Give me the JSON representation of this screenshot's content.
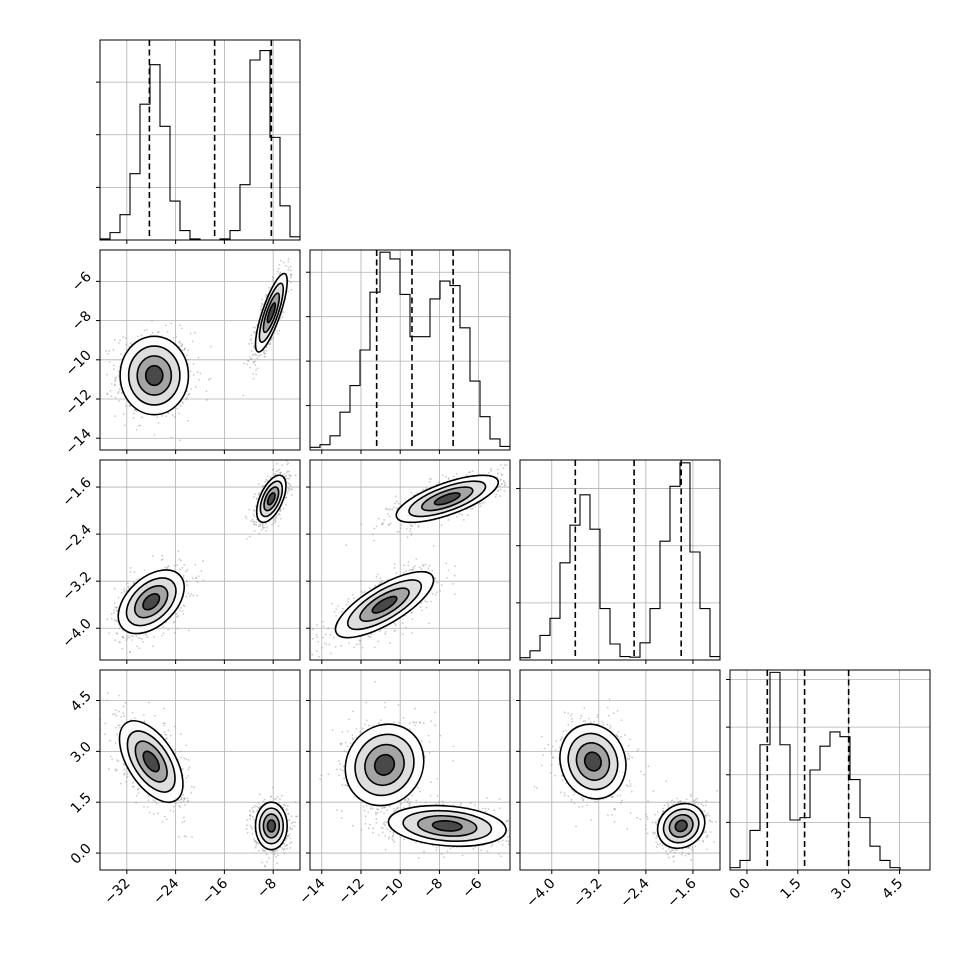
{
  "chart_data": {
    "type": "corner",
    "parameters": [
      {
        "ticks": [
          "−32",
          "−24",
          "−16",
          "−8"
        ],
        "tick_values": [
          -32,
          -24,
          -16,
          -8
        ],
        "range": [
          -36.4,
          -3.6
        ],
        "quantiles": [
          -28.3,
          -17.6,
          -8.3
        ],
        "hist_edges": [
          -36.4,
          -34.76,
          -33.12,
          -31.48,
          -29.84,
          -28.2,
          -26.56,
          -24.92,
          -23.28,
          -21.64,
          -20.0,
          -18.36,
          -16.72,
          -15.08,
          -13.44,
          -11.8,
          -10.16,
          -8.52,
          -6.88,
          -5.24,
          -3.6
        ],
        "hist_counts": [
          0.2,
          1.4,
          4.8,
          12.6,
          25.8,
          33.3,
          21.6,
          7.4,
          1.8,
          0.2,
          0.0,
          0.0,
          0.2,
          1.8,
          10.5,
          34.2,
          36.0,
          19.5,
          6.5,
          0.6
        ]
      },
      {
        "ticks": [
          "−14",
          "−12",
          "−10",
          "−8",
          "−6"
        ],
        "tick_values": [
          -14,
          -12,
          -10,
          -8,
          -6
        ],
        "range": [
          -14.6,
          -4.4
        ],
        "quantiles": [
          -11.2,
          -9.4,
          -7.3
        ],
        "hist_edges": [
          -14.6,
          -14.09,
          -13.58,
          -13.07,
          -12.56,
          -12.05,
          -11.54,
          -11.03,
          -10.52,
          -10.01,
          -9.5,
          -8.99,
          -8.48,
          -7.97,
          -7.46,
          -6.95,
          -6.44,
          -5.93,
          -5.42,
          -4.91,
          -4.4
        ],
        "hist_counts": [
          0.6,
          1.2,
          3.2,
          8.5,
          14.5,
          22.5,
          35.5,
          44.5,
          43.0,
          35.0,
          25.5,
          25.5,
          34.0,
          38.0,
          37.0,
          27.5,
          15.5,
          7.5,
          2.5,
          0.8
        ]
      },
      {
        "ticks": [
          "−4.0",
          "−3.2",
          "−2.4",
          "−1.6"
        ],
        "tick_values": [
          -4.0,
          -3.2,
          -2.4,
          -1.6
        ],
        "range": [
          -4.54,
          -1.14
        ],
        "quantiles": [
          -3.6,
          -2.6,
          -1.8
        ],
        "hist_edges": [
          -4.54,
          -4.37,
          -4.2,
          -4.03,
          -3.86,
          -3.69,
          -3.52,
          -3.35,
          -3.18,
          -3.01,
          -2.84,
          -2.67,
          -2.5,
          -2.33,
          -2.16,
          -1.99,
          -1.82,
          -1.65,
          -1.48,
          -1.31,
          -1.14
        ],
        "hist_counts": [
          0.4,
          1.6,
          4.3,
          7.3,
          17.0,
          23.6,
          28.9,
          22.9,
          9.0,
          2.8,
          0.6,
          0.5,
          3.0,
          9.0,
          20.8,
          30.4,
          34.5,
          18.9,
          9.0,
          0.6
        ]
      },
      {
        "ticks": [
          "0.0",
          "1.5",
          "3.0",
          "4.5"
        ],
        "tick_values": [
          0.0,
          1.5,
          3.0,
          4.5
        ],
        "range": [
          -0.5,
          5.4
        ],
        "quantiles": [
          0.6,
          1.7,
          3.0
        ],
        "hist_edges": [
          -0.5,
          -0.205,
          0.09,
          0.385,
          0.68,
          0.975,
          1.27,
          1.565,
          1.86,
          2.155,
          2.45,
          2.745,
          3.04,
          3.335,
          3.63,
          3.925,
          4.22,
          4.515,
          4.81,
          5.105,
          5.4
        ],
        "hist_counts": [
          0.5,
          2.0,
          8.3,
          26.3,
          41.5,
          26.3,
          10.5,
          11.0,
          21.0,
          26.0,
          29.0,
          28.0,
          19.0,
          11.0,
          5.0,
          2.0,
          0.5,
          0.0,
          0.0,
          0.0
        ]
      }
    ],
    "histogram_ylims": [
      [
        0,
        38
      ],
      [
        0,
        45
      ],
      [
        0,
        35
      ],
      [
        0,
        42
      ]
    ],
    "histogram_tick_counts": [
      [
        10,
        20,
        30
      ],
      [
        10,
        20,
        30,
        40
      ],
      [
        10,
        20,
        30
      ],
      [
        10,
        20,
        30,
        40
      ]
    ],
    "pair_modes": {
      "1-0": [
        {
          "mx": -27.5,
          "my": -10.8,
          "sx": 2.8,
          "sy": 1.0,
          "rho": 0.0
        },
        {
          "mx": -8.3,
          "my": -7.6,
          "sx": 1.3,
          "sy": 1.0,
          "rho": 0.8
        }
      ],
      "2-0": [
        {
          "mx": -28.0,
          "my": -3.55,
          "sx": 2.7,
          "sy": 0.27,
          "rho": 0.45
        },
        {
          "mx": -8.3,
          "my": -1.8,
          "sx": 1.2,
          "sy": 0.2,
          "rho": 0.55
        }
      ],
      "2-1": [
        {
          "mx": -10.8,
          "my": -3.6,
          "sx": 1.25,
          "sy": 0.28,
          "rho": 0.75
        },
        {
          "mx": -7.6,
          "my": -1.8,
          "sx": 1.3,
          "sy": 0.2,
          "rho": 0.7
        }
      ],
      "3-0": [
        {
          "mx": -28.0,
          "my": 2.7,
          "sx": 2.6,
          "sy": 0.6,
          "rho": -0.55
        },
        {
          "mx": -8.3,
          "my": 0.8,
          "sx": 1.3,
          "sy": 0.35,
          "rho": 0.0
        }
      ],
      "3-1": [
        {
          "mx": -10.8,
          "my": 2.6,
          "sx": 1.0,
          "sy": 0.6,
          "rho": 0.1
        },
        {
          "mx": -7.6,
          "my": 0.8,
          "sx": 1.5,
          "sy": 0.3,
          "rho": -0.2
        }
      ],
      "3-2": [
        {
          "mx": -3.3,
          "my": 2.7,
          "sx": 0.28,
          "sy": 0.55,
          "rho": -0.1
        },
        {
          "mx": -1.8,
          "my": 0.8,
          "sx": 0.2,
          "sy": 0.33,
          "rho": 0.15
        }
      ]
    },
    "contour_levels_sigma": [
      0.5,
      1.0,
      1.5,
      2.0
    ],
    "grid": true,
    "point_color": "#8c8c8c",
    "density_fill_colors": [
      "#ffffff",
      "#d8d8d8",
      "#9a9a9a",
      "#3a3a3a"
    ]
  }
}
